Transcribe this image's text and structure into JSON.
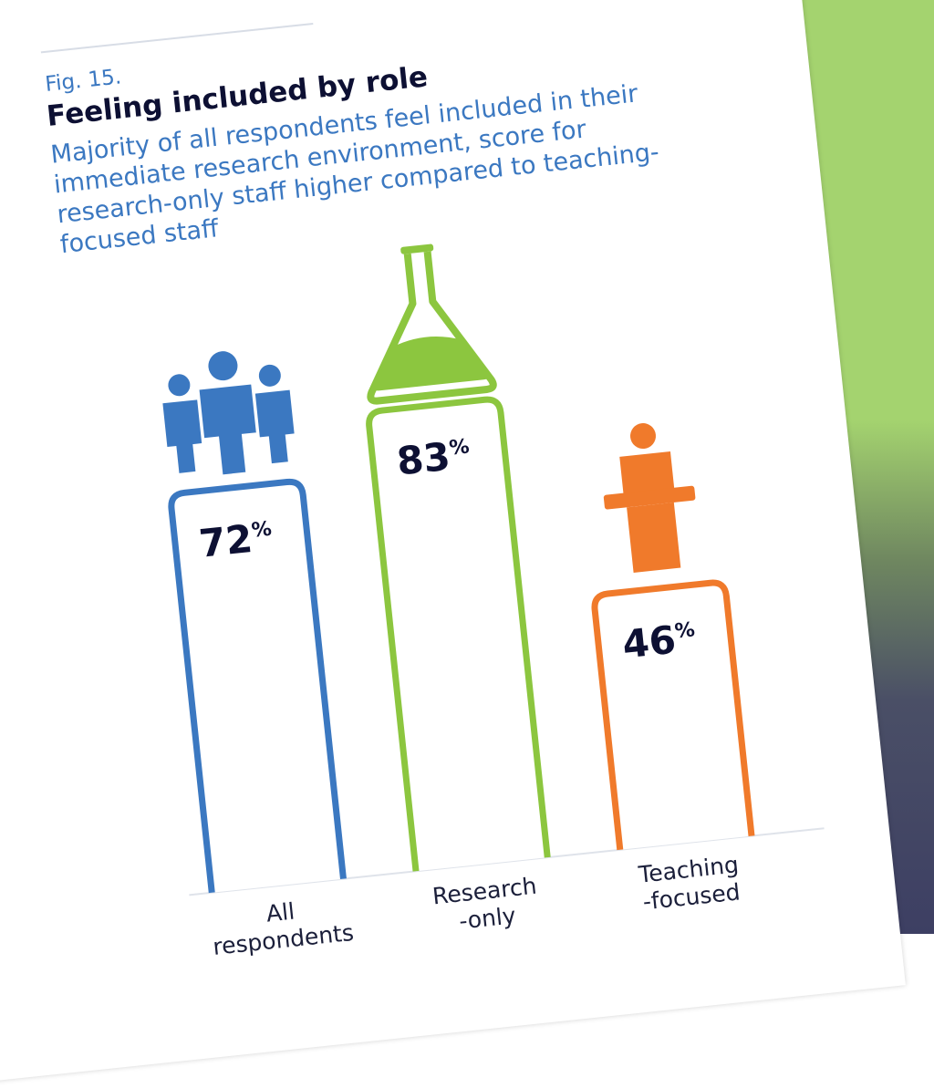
{
  "header": {
    "fig": "Fig. 15.",
    "title": "Feeling included by role",
    "subtitle": "Majority of all respondents feel included in their immediate research environment, score for research-only staff higher compared to teaching-focused staff"
  },
  "chart_data": {
    "type": "bar",
    "title": "Feeling included by role",
    "categories": [
      "All respondents",
      "Research-only",
      "Teaching-focused"
    ],
    "category_lines": [
      [
        "All",
        "respondents"
      ],
      [
        "Research",
        "-only"
      ],
      [
        "Teaching",
        "-focused"
      ]
    ],
    "values": [
      72,
      83,
      46
    ],
    "value_labels": [
      "72",
      "83",
      "46"
    ],
    "unit": "%",
    "colors": [
      "#3b78c1",
      "#8cc63f",
      "#f07a2b"
    ],
    "icons": [
      "people-group-icon",
      "flask-icon",
      "lecturer-podium-icon"
    ],
    "ylim": [
      0,
      100
    ],
    "grid": false,
    "legend": "none"
  }
}
